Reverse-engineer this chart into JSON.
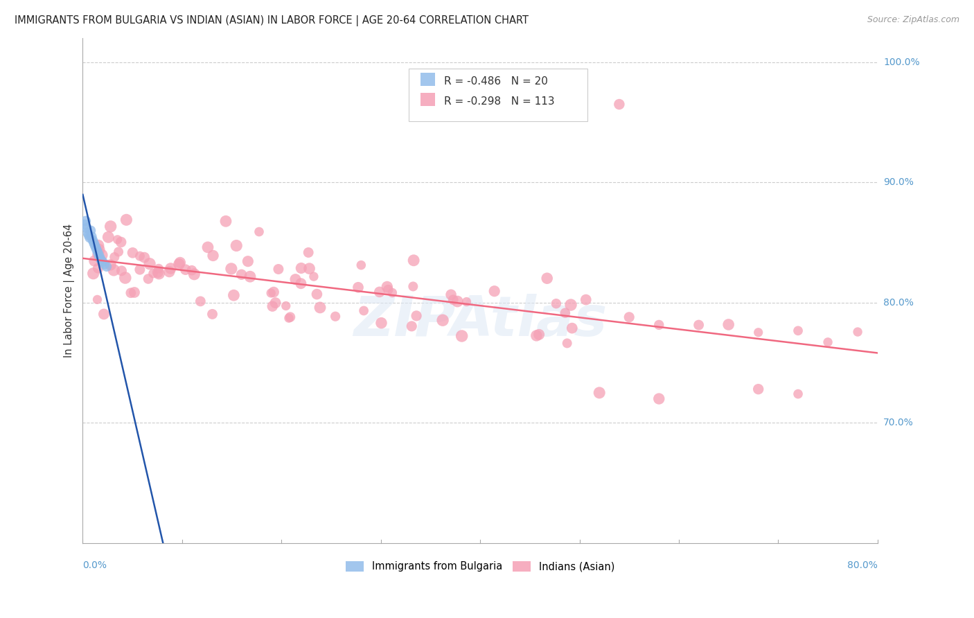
{
  "title": "IMMIGRANTS FROM BULGARIA VS INDIAN (ASIAN) IN LABOR FORCE | AGE 20-64 CORRELATION CHART",
  "source": "Source: ZipAtlas.com",
  "ylabel": "In Labor Force | Age 20-64",
  "legend_bulgaria": "R = -0.486",
  "legend_bulgarian_n": "N = 20",
  "legend_indian": "R = -0.298",
  "legend_indian_n": "N = 113",
  "legend_label_bulgaria": "Immigrants from Bulgaria",
  "legend_label_indian": "Indians (Asian)",
  "bulgaria_color": "#92bcea",
  "indian_color": "#f5a0b5",
  "bulgaria_line_color": "#2255aa",
  "indian_line_color": "#f06880",
  "watermark": "ZIPAtlas",
  "xlim": [
    0.0,
    0.8
  ],
  "ylim": [
    0.6,
    1.02
  ],
  "ytick_vals": [
    0.7,
    0.8,
    0.9,
    1.0
  ],
  "ytick_labels": [
    "70.0%",
    "80.0%",
    "90.0%",
    "100.0%"
  ],
  "bg_color": "#ffffff",
  "grid_color": "#cccccc",
  "axis_color": "#aaaaaa",
  "title_color": "#222222",
  "source_color": "#999999",
  "right_label_color": "#5599cc",
  "bottom_label_color": "#5599cc"
}
